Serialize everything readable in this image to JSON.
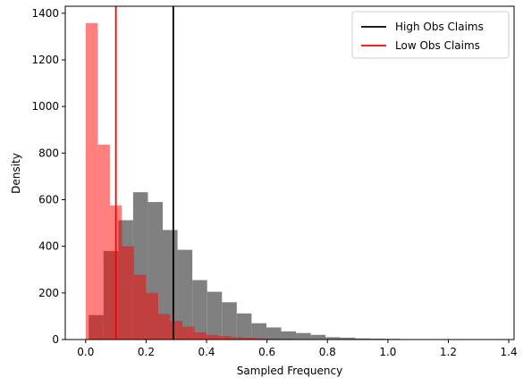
{
  "chart_data": {
    "type": "histogram",
    "xlabel": "Sampled Frequency",
    "ylabel": "Density",
    "xlim": [
      -0.0675,
      1.4175
    ],
    "ylim": [
      0,
      1430
    ],
    "xticks": [
      0.0,
      0.2,
      0.4,
      0.6,
      0.8,
      1.0,
      1.2,
      1.4
    ],
    "xtick_labels": [
      "0.0",
      "0.2",
      "0.4",
      "0.6",
      "0.8",
      "1.0",
      "1.2",
      "1.4"
    ],
    "yticks": [
      0,
      200,
      400,
      600,
      800,
      1000,
      1200,
      1400
    ],
    "ytick_labels": [
      "0",
      "200",
      "400",
      "600",
      "800",
      "1000",
      "1200",
      "1400"
    ],
    "legend_position": "top-right",
    "series": [
      {
        "name": "High Obs Claims",
        "color": "#000000",
        "bar_color": "#808080",
        "bar_alpha": 1.0,
        "bin_edges": [
          0.01,
          0.059,
          0.108,
          0.157,
          0.206,
          0.255,
          0.304,
          0.353,
          0.402,
          0.451,
          0.5,
          0.549,
          0.598,
          0.647,
          0.696,
          0.745,
          0.794,
          0.843,
          0.892,
          0.941,
          0.99,
          1.039,
          1.088,
          1.137,
          1.186,
          1.235,
          1.284,
          1.333,
          1.355
        ],
        "values": [
          105,
          380,
          512,
          632,
          590,
          470,
          385,
          255,
          205,
          160,
          112,
          70,
          52,
          35,
          28,
          20,
          10,
          8,
          5,
          4,
          3,
          2,
          2,
          1,
          1,
          1,
          1,
          1
        ],
        "vline": 0.29
      },
      {
        "name": "Low Obs Claims",
        "color": "#ff0000",
        "bar_color": "#ff0000",
        "bar_alpha": 0.5,
        "bin_edges": [
          0.0,
          0.04,
          0.08,
          0.12,
          0.16,
          0.2,
          0.24,
          0.28,
          0.32,
          0.36,
          0.4,
          0.44,
          0.48,
          0.52,
          0.56,
          0.6,
          0.64,
          0.68,
          0.72,
          0.76,
          0.8
        ],
        "values": [
          1358,
          836,
          575,
          400,
          278,
          200,
          110,
          80,
          55,
          30,
          20,
          15,
          10,
          8,
          5,
          4,
          3,
          2,
          2,
          1
        ],
        "vline": 0.1
      }
    ]
  }
}
